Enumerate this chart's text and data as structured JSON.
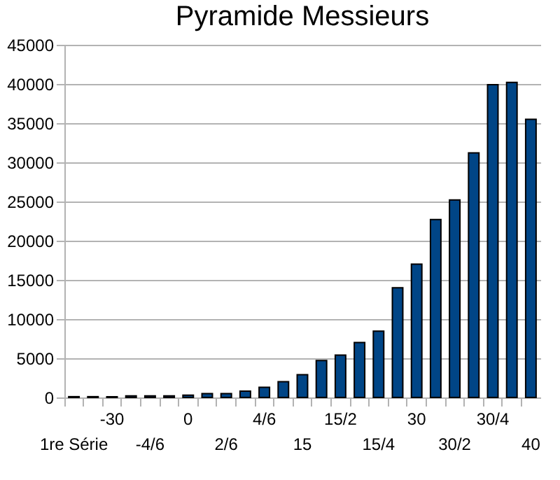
{
  "chart_data": {
    "type": "bar",
    "title": "Pyramide Messieurs",
    "categories": [
      "1re Série",
      null,
      "-30",
      null,
      "-4/6",
      null,
      "0",
      null,
      "2/6",
      null,
      "4/6",
      null,
      "15",
      null,
      "15/2",
      null,
      "15/4",
      null,
      "30",
      null,
      "30/2",
      null,
      "30/4",
      null,
      "40"
    ],
    "values": [
      100,
      100,
      100,
      200,
      200,
      200,
      300,
      500,
      500,
      800,
      1300,
      2000,
      2900,
      4700,
      5400,
      7000,
      8450,
      14000,
      17000,
      22700,
      25200,
      31200,
      39900,
      40200,
      35500
    ],
    "color": "#004586",
    "ylim": [
      0,
      45000
    ],
    "yticks": [
      0,
      5000,
      10000,
      15000,
      20000,
      25000,
      30000,
      35000,
      40000,
      45000
    ],
    "grid": "y"
  }
}
